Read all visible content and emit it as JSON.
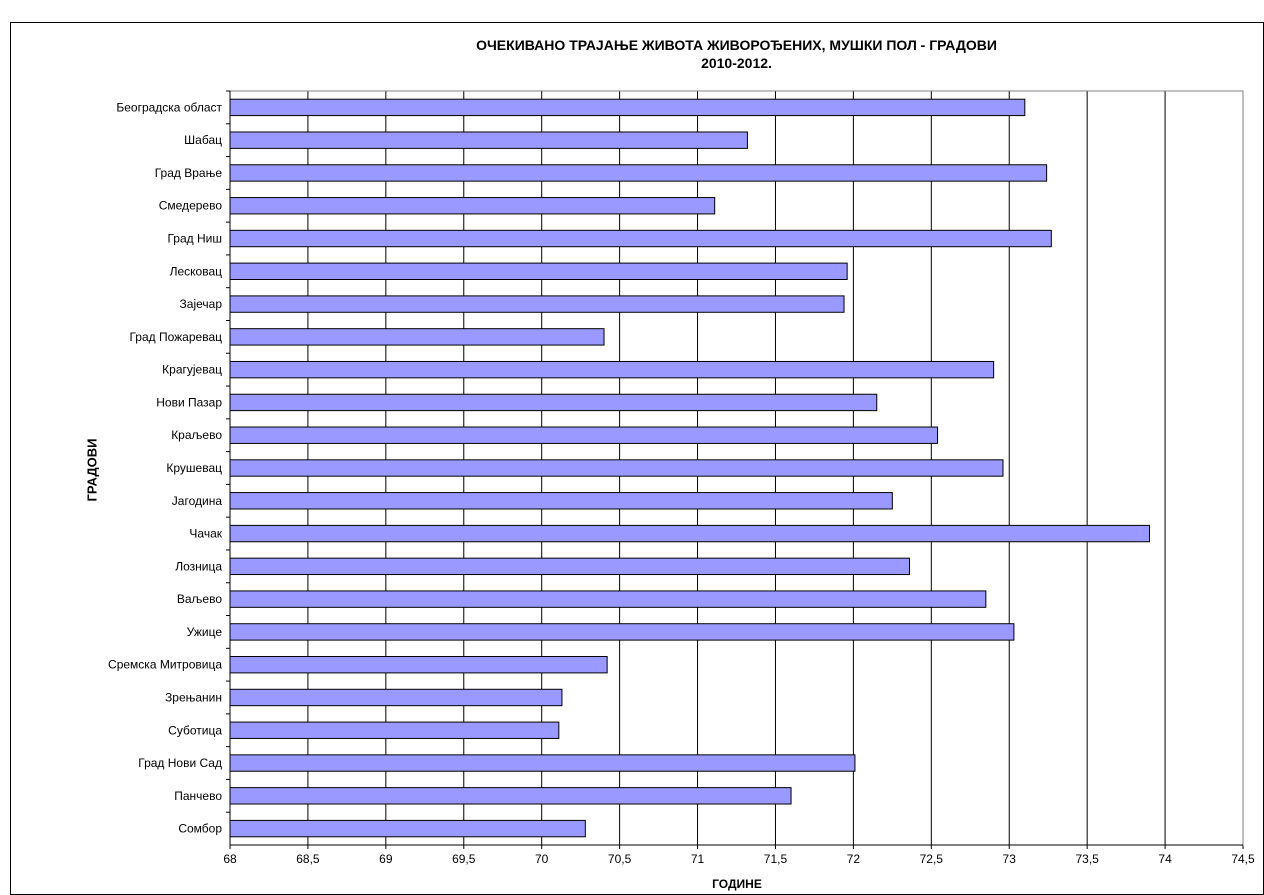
{
  "chart_data": {
    "type": "bar",
    "orientation": "horizontal",
    "title": "ОЧЕКИВАНО ТРАЈАЊЕ ЖИВОТА ЖИВОРОЂЕНИХ, МУШКИ ПОЛ - ГРАДОВИ",
    "subtitle": "2010-2012.",
    "xlabel": "ГОДИНЕ",
    "ylabel": "ГРАДОВИ",
    "xlim": [
      68,
      74.5
    ],
    "x_ticks": [
      "68",
      "68,5",
      "69",
      "69,5",
      "70",
      "70,5",
      "71",
      "71,5",
      "72",
      "72,5",
      "73",
      "73,5",
      "74",
      "74,5"
    ],
    "grid": "vertical",
    "legend": "none",
    "bar_color": "#9999ff",
    "categories": [
      "Београдска област",
      "Шабац",
      "Град Врање",
      "Смедерево",
      "Град Ниш",
      "Лесковац",
      "Зајечар",
      "Град Пожаревац",
      "Крагујевац",
      "Нови Пазар",
      "Краљево",
      "Крушевац",
      "Јагодина",
      "Чачак",
      "Лозница",
      "Ваљево",
      "Ужице",
      "Сремска Митровица",
      "Зрењанин",
      "Суботица",
      "Град Нови Сад",
      "Панчево",
      "Сомбор"
    ],
    "values": [
      73.1,
      71.32,
      73.24,
      71.11,
      73.27,
      71.96,
      71.94,
      70.4,
      72.9,
      72.15,
      72.54,
      72.96,
      72.25,
      73.9,
      72.36,
      72.85,
      73.03,
      70.42,
      70.13,
      70.11,
      72.01,
      71.6,
      70.28
    ]
  }
}
